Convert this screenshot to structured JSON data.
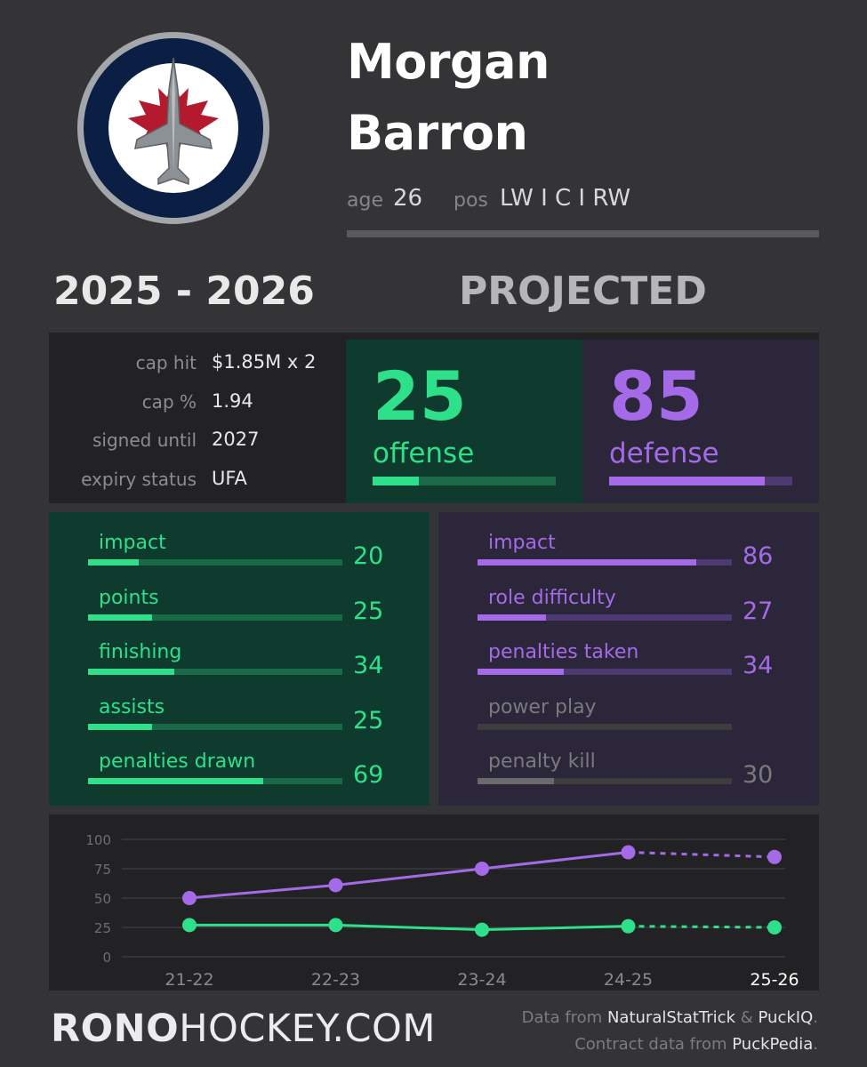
{
  "player": {
    "first_name": "Morgan",
    "last_name": "Barron",
    "age_label": "age",
    "age": "26",
    "pos_label": "pos",
    "positions": "LW I C I RW"
  },
  "season": "2025 - 2026",
  "projection_label": "PROJECTED",
  "contract": {
    "rows": [
      {
        "label": "cap hit",
        "value": "$1.85M x 2"
      },
      {
        "label": "cap %",
        "value": "1.94"
      },
      {
        "label": "signed until",
        "value": "2027"
      },
      {
        "label": "expiry status",
        "value": "UFA"
      }
    ]
  },
  "offense": {
    "score": "25",
    "label": "offense",
    "fraction": 0.25
  },
  "defense": {
    "score": "85",
    "label": "defense",
    "fraction": 0.85
  },
  "offense_details": [
    {
      "label": "impact",
      "value": "20",
      "fraction": 0.2
    },
    {
      "label": "points",
      "value": "25",
      "fraction": 0.25
    },
    {
      "label": "finishing",
      "value": "34",
      "fraction": 0.34
    },
    {
      "label": "assists",
      "value": "25",
      "fraction": 0.25
    },
    {
      "label": "penalties drawn",
      "value": "69",
      "fraction": 0.69
    }
  ],
  "defense_details": [
    {
      "label": "impact",
      "value": "86",
      "fraction": 0.86,
      "active": true
    },
    {
      "label": "role difficulty",
      "value": "27",
      "fraction": 0.27,
      "active": true
    },
    {
      "label": "penalties taken",
      "value": "34",
      "fraction": 0.34,
      "active": true
    },
    {
      "label": "power play",
      "value": "",
      "fraction": 0,
      "active": false
    },
    {
      "label": "penalty kill",
      "value": "30",
      "fraction": 0.3,
      "active": false
    }
  ],
  "colors": {
    "offense": "#2ee08a",
    "defense": "#a56ae8",
    "offense_panel": "#0e3b2e",
    "defense_panel": "#2b2639",
    "inactive": "#7a7a7e"
  },
  "chart_data": {
    "type": "line",
    "x": [
      "21-22",
      "22-23",
      "23-24",
      "24-25",
      "25-26"
    ],
    "ylim": [
      0,
      100
    ],
    "yticks": [
      0,
      25,
      50,
      75,
      100
    ],
    "series": [
      {
        "name": "defense",
        "values": [
          50,
          61,
          75,
          89,
          85
        ],
        "color": "#a56ae8",
        "projected_from_index": 3
      },
      {
        "name": "offense",
        "values": [
          27,
          27,
          23,
          26,
          25
        ],
        "color": "#2ee08a",
        "projected_from_index": 3
      }
    ],
    "highlight_label": "25-26",
    "grid": true
  },
  "footer": {
    "brand_bold": "RONO",
    "brand_rest": "HOCKEY.COM",
    "data_prefix": "Data from",
    "source1": "NaturalStatTrick",
    "amp": "&",
    "source2": "PuckIQ",
    "period1": ".",
    "contract_prefix": "Contract data from",
    "source3": "PuckPedia",
    "period2": "."
  }
}
